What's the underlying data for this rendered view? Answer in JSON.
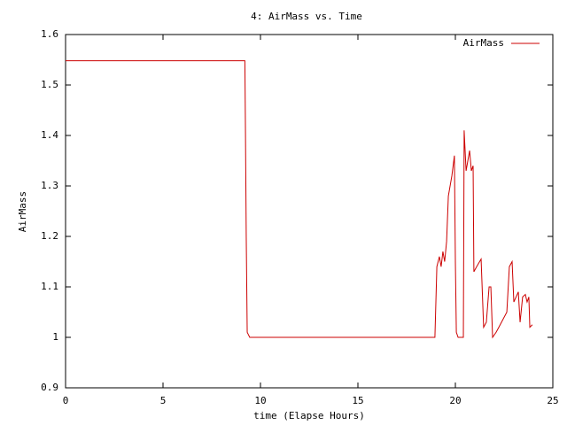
{
  "chart_data": {
    "type": "line",
    "title": "4: AirMass vs. Time",
    "x_label": "time (Elapse Hours)",
    "y_label": "AirMass",
    "xlim": [
      0,
      25
    ],
    "xticks": [
      0,
      5,
      10,
      15,
      20,
      25
    ],
    "ylim": [
      0.9,
      1.6
    ],
    "yticks": [
      0.9,
      1,
      1.1,
      1.2,
      1.3,
      1.4,
      1.5,
      1.6
    ],
    "legend": "upper right",
    "series": [
      {
        "name": "AirMass",
        "color": "#cc0000",
        "x": [
          0,
          9.2,
          9.23,
          9.27,
          9.32,
          9.45,
          18.95,
          19.05,
          19.18,
          19.27,
          19.36,
          19.45,
          19.55,
          19.64,
          19.82,
          19.95,
          20.0,
          20.05,
          20.14,
          20.41,
          20.45,
          20.55,
          20.64,
          20.73,
          20.82,
          20.91,
          20.95,
          21.09,
          21.32,
          21.45,
          21.59,
          21.73,
          21.82,
          21.91,
          22.09,
          22.23,
          22.64,
          22.77,
          22.91,
          23.0,
          23.23,
          23.32,
          23.45,
          23.59,
          23.68,
          23.77,
          23.82,
          23.95
        ],
        "values": [
          1.548,
          1.548,
          1.41,
          1.2,
          1.01,
          1.0,
          1.0,
          1.14,
          1.16,
          1.14,
          1.17,
          1.15,
          1.19,
          1.28,
          1.32,
          1.36,
          1.15,
          1.01,
          1.0,
          1.0,
          1.41,
          1.33,
          1.35,
          1.37,
          1.33,
          1.34,
          1.13,
          1.14,
          1.155,
          1.02,
          1.03,
          1.1,
          1.1,
          1.0,
          1.01,
          1.02,
          1.05,
          1.14,
          1.15,
          1.07,
          1.09,
          1.03,
          1.08,
          1.085,
          1.07,
          1.08,
          1.02,
          1.025
        ]
      }
    ]
  }
}
